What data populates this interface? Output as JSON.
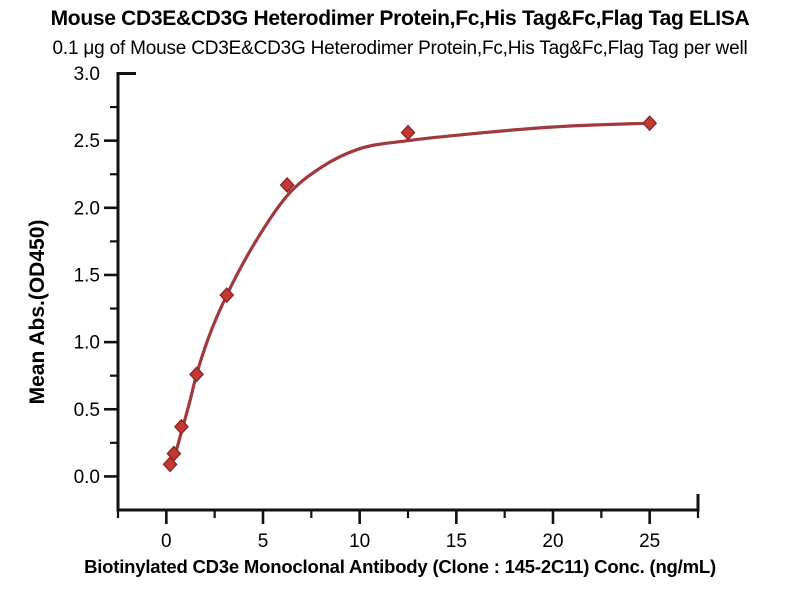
{
  "chart_data": {
    "type": "scatter",
    "title": "Mouse CD3E&CD3G Heterodimer Protein,Fc,His Tag&Fc,Flag Tag ELISA",
    "subtitle": "0.1 μg of Mouse CD3E&CD3G Heterodimer Protein,Fc,His Tag&Fc,Flag Tag per well",
    "xlabel": "Biotinylated CD3e Monoclonal Antibody (Clone : 145-2C11) Conc. (ng/mL)",
    "ylabel": "Mean Abs.(OD450)",
    "xlim": [
      -2.5,
      27.5
    ],
    "ylim": [
      -0.25,
      3.0
    ],
    "x_major_ticks": [
      0,
      5,
      10,
      15,
      20,
      25
    ],
    "x_major_labels": [
      "0",
      "5",
      "10",
      "15",
      "20",
      "25"
    ],
    "x_minor_ticks": [
      -2.5,
      2.5,
      7.5,
      12.5,
      17.5,
      22.5,
      27.5
    ],
    "y_major_ticks": [
      0.0,
      0.5,
      1.0,
      1.5,
      2.0,
      2.5,
      3.0
    ],
    "y_major_labels": [
      "0.0",
      "0.5",
      "1.0",
      "1.5",
      "2.0",
      "2.5",
      "3.0"
    ],
    "y_minor_ticks": [
      0.25,
      0.75,
      1.25,
      1.75,
      2.25,
      2.75
    ],
    "grid": false,
    "legend": "none",
    "axis_color": "#111111",
    "series": [
      {
        "marker": "diamond",
        "marker_color": "#C23B32",
        "marker_edge_color": "#8E2528",
        "points": [
          [
            0.195,
            0.09
          ],
          [
            0.391,
            0.17
          ],
          [
            0.781,
            0.37
          ],
          [
            1.563,
            0.76
          ],
          [
            3.125,
            1.35
          ],
          [
            6.25,
            2.17
          ],
          [
            12.5,
            2.56
          ],
          [
            25.0,
            2.63
          ]
        ]
      }
    ],
    "fit_curve": {
      "color": "#A03A3E",
      "samples": [
        [
          0.15,
          0.055
        ],
        [
          0.195,
          0.067
        ],
        [
          0.391,
          0.135
        ],
        [
          0.781,
          0.33
        ],
        [
          1.2,
          0.55
        ],
        [
          1.563,
          0.76
        ],
        [
          2.2,
          1.04
        ],
        [
          3.125,
          1.35
        ],
        [
          4.5,
          1.72
        ],
        [
          6.25,
          2.09
        ],
        [
          8.0,
          2.3
        ],
        [
          10.0,
          2.44
        ],
        [
          12.5,
          2.5
        ],
        [
          15.0,
          2.54
        ],
        [
          18.0,
          2.58
        ],
        [
          21.0,
          2.61
        ],
        [
          25.0,
          2.63
        ]
      ]
    }
  }
}
